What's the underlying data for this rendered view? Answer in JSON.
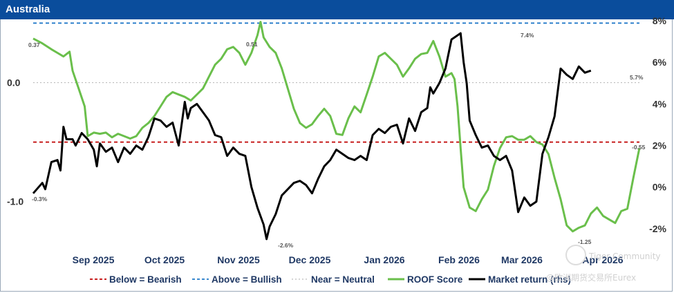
{
  "header": {
    "title": "Australia"
  },
  "watermark": {
    "line1": "Tiger Community",
    "line2": "@欧洲期货交易所Eurex"
  },
  "chart_data": {
    "type": "line",
    "title": "Australia",
    "x_labels": [
      "Sep 2025",
      "Oct 2025",
      "Nov 2025",
      "Dec 2025",
      "Jan 2026",
      "Feb 2026",
      "Mar 2026",
      "Apr 2026"
    ],
    "y_left": {
      "ticks": [
        "0.0",
        "-1.0"
      ],
      "range": [
        -1.35,
        0.52
      ]
    },
    "y_right": {
      "ticks": [
        "8%",
        "6%",
        "4%",
        "2%",
        "0%",
        "-2%"
      ],
      "range": [
        -2.7,
        8.0
      ]
    },
    "reference_lines": [
      {
        "name": "Below = Bearish",
        "value": -0.5,
        "color": "#c00000",
        "style": "dashed"
      },
      {
        "name": "Above = Bullish",
        "value": 0.5,
        "color": "#1f77c8",
        "style": "dashed"
      },
      {
        "name": "Near = Neutral",
        "value": 0.0,
        "color": "#bbbbbb",
        "style": "dotted"
      }
    ],
    "series": [
      {
        "name": "ROOF Score",
        "axis": "left",
        "color": "#6abf4b",
        "points": [
          [
            0,
            0.37
          ],
          [
            3,
            0.33
          ],
          [
            6,
            0.28
          ],
          [
            8,
            0.25
          ],
          [
            10,
            0.22
          ],
          [
            12,
            0.26
          ],
          [
            13,
            0.1
          ],
          [
            15,
            -0.05
          ],
          [
            17,
            -0.2
          ],
          [
            18,
            -0.45
          ],
          [
            20,
            -0.42
          ],
          [
            22,
            -0.43
          ],
          [
            24,
            -0.42
          ],
          [
            26,
            -0.46
          ],
          [
            28,
            -0.43
          ],
          [
            30,
            -0.45
          ],
          [
            32,
            -0.47
          ],
          [
            34,
            -0.45
          ],
          [
            36,
            -0.38
          ],
          [
            38,
            -0.34
          ],
          [
            40,
            -0.28
          ],
          [
            42,
            -0.2
          ],
          [
            44,
            -0.12
          ],
          [
            46,
            -0.08
          ],
          [
            48,
            -0.1
          ],
          [
            50,
            -0.12
          ],
          [
            52,
            -0.15
          ],
          [
            54,
            -0.1
          ],
          [
            56,
            -0.05
          ],
          [
            58,
            0.05
          ],
          [
            60,
            0.15
          ],
          [
            62,
            0.2
          ],
          [
            64,
            0.28
          ],
          [
            66,
            0.3
          ],
          [
            68,
            0.25
          ],
          [
            70,
            0.15
          ],
          [
            72,
            0.25
          ],
          [
            74,
            0.4
          ],
          [
            75,
            0.51
          ],
          [
            76,
            0.38
          ],
          [
            78,
            0.3
          ],
          [
            80,
            0.25
          ],
          [
            82,
            0.12
          ],
          [
            84,
            -0.05
          ],
          [
            86,
            -0.22
          ],
          [
            88,
            -0.34
          ],
          [
            90,
            -0.38
          ],
          [
            92,
            -0.35
          ],
          [
            94,
            -0.28
          ],
          [
            96,
            -0.22
          ],
          [
            98,
            -0.28
          ],
          [
            100,
            -0.43
          ],
          [
            102,
            -0.44
          ],
          [
            104,
            -0.3
          ],
          [
            106,
            -0.2
          ],
          [
            108,
            -0.25
          ],
          [
            110,
            -0.1
          ],
          [
            112,
            0.05
          ],
          [
            114,
            0.22
          ],
          [
            116,
            0.25
          ],
          [
            118,
            0.2
          ],
          [
            120,
            0.15
          ],
          [
            122,
            0.05
          ],
          [
            124,
            0.12
          ],
          [
            126,
            0.2
          ],
          [
            128,
            0.24
          ],
          [
            130,
            0.25
          ],
          [
            132,
            0.35
          ],
          [
            134,
            0.22
          ],
          [
            136,
            0.05
          ],
          [
            138,
            0.08
          ],
          [
            139,
            0.03
          ],
          [
            140,
            -0.2
          ],
          [
            141,
            -0.55
          ],
          [
            142,
            -0.88
          ],
          [
            144,
            -1.05
          ],
          [
            146,
            -1.08
          ],
          [
            148,
            -0.98
          ],
          [
            150,
            -0.9
          ],
          [
            152,
            -0.7
          ],
          [
            154,
            -0.55
          ],
          [
            156,
            -0.46
          ],
          [
            158,
            -0.45
          ],
          [
            160,
            -0.48
          ],
          [
            162,
            -0.48
          ],
          [
            164,
            -0.45
          ],
          [
            166,
            -0.5
          ],
          [
            168,
            -0.52
          ],
          [
            170,
            -0.6
          ],
          [
            172,
            -0.8
          ],
          [
            174,
            -0.98
          ],
          [
            176,
            -1.2
          ],
          [
            178,
            -1.25
          ],
          [
            180,
            -1.22
          ],
          [
            182,
            -1.2
          ],
          [
            184,
            -1.1
          ],
          [
            186,
            -1.05
          ],
          [
            188,
            -1.12
          ],
          [
            190,
            -1.15
          ],
          [
            192,
            -1.18
          ],
          [
            194,
            -1.08
          ],
          [
            196,
            -1.06
          ],
          [
            198,
            -0.8
          ],
          [
            200,
            -0.55
          ]
        ]
      },
      {
        "name": "Market return (rhs)",
        "axis": "right",
        "color": "#000000",
        "points": [
          [
            0,
            -0.3
          ],
          [
            3,
            0.2
          ],
          [
            4,
            -0.1
          ],
          [
            6,
            1.2
          ],
          [
            8,
            1.3
          ],
          [
            9,
            0.8
          ],
          [
            10,
            2.9
          ],
          [
            11,
            2.3
          ],
          [
            13,
            2.3
          ],
          [
            14,
            2.0
          ],
          [
            16,
            2.6
          ],
          [
            18,
            2.3
          ],
          [
            20,
            1.8
          ],
          [
            21,
            1.0
          ],
          [
            22,
            2.1
          ],
          [
            24,
            1.7
          ],
          [
            26,
            1.9
          ],
          [
            28,
            1.2
          ],
          [
            30,
            1.9
          ],
          [
            32,
            1.6
          ],
          [
            34,
            2.0
          ],
          [
            36,
            1.8
          ],
          [
            38,
            2.4
          ],
          [
            40,
            3.3
          ],
          [
            42,
            3.2
          ],
          [
            44,
            2.9
          ],
          [
            46,
            3.1
          ],
          [
            48,
            2.0
          ],
          [
            50,
            4.1
          ],
          [
            51,
            3.3
          ],
          [
            52,
            3.8
          ],
          [
            54,
            4.0
          ],
          [
            56,
            3.6
          ],
          [
            58,
            3.2
          ],
          [
            60,
            2.5
          ],
          [
            62,
            2.4
          ],
          [
            64,
            1.5
          ],
          [
            66,
            1.9
          ],
          [
            68,
            1.6
          ],
          [
            70,
            1.5
          ],
          [
            72,
            0.0
          ],
          [
            74,
            -1.0
          ],
          [
            76,
            -1.8
          ],
          [
            77,
            -2.5
          ],
          [
            78,
            -1.9
          ],
          [
            80,
            -1.3
          ],
          [
            82,
            -0.4
          ],
          [
            84,
            -0.1
          ],
          [
            86,
            0.2
          ],
          [
            88,
            0.3
          ],
          [
            90,
            0.1
          ],
          [
            92,
            -0.3
          ],
          [
            94,
            0.4
          ],
          [
            96,
            1.0
          ],
          [
            98,
            1.3
          ],
          [
            100,
            1.8
          ],
          [
            102,
            1.6
          ],
          [
            104,
            1.4
          ],
          [
            106,
            1.3
          ],
          [
            108,
            1.5
          ],
          [
            110,
            1.3
          ],
          [
            112,
            2.5
          ],
          [
            114,
            2.8
          ],
          [
            116,
            2.6
          ],
          [
            118,
            2.9
          ],
          [
            120,
            3.0
          ],
          [
            122,
            2.1
          ],
          [
            124,
            3.3
          ],
          [
            126,
            2.7
          ],
          [
            128,
            3.6
          ],
          [
            130,
            3.8
          ],
          [
            131,
            4.8
          ],
          [
            132,
            4.5
          ],
          [
            134,
            5.0
          ],
          [
            136,
            5.7
          ],
          [
            138,
            7.1
          ],
          [
            140,
            7.3
          ],
          [
            141,
            7.4
          ],
          [
            142,
            6.0
          ],
          [
            143,
            5.0
          ],
          [
            144,
            3.2
          ],
          [
            146,
            2.5
          ],
          [
            148,
            1.9
          ],
          [
            150,
            2.0
          ],
          [
            152,
            1.5
          ],
          [
            154,
            1.3
          ],
          [
            156,
            1.5
          ],
          [
            158,
            0.8
          ],
          [
            160,
            -1.2
          ],
          [
            162,
            -0.5
          ],
          [
            164,
            -0.9
          ],
          [
            166,
            -0.7
          ],
          [
            168,
            1.6
          ],
          [
            170,
            2.4
          ],
          [
            172,
            3.4
          ],
          [
            174,
            5.7
          ],
          [
            176,
            5.4
          ],
          [
            178,
            5.2
          ],
          [
            180,
            5.8
          ],
          [
            182,
            5.5
          ],
          [
            184,
            5.6
          ]
        ]
      }
    ],
    "annotations": [
      {
        "text": "0.37",
        "series": "ROOF Score"
      },
      {
        "text": "0.51",
        "series": "ROOF Score"
      },
      {
        "text": "-1.25",
        "series": "ROOF Score"
      },
      {
        "text": "-0.55",
        "series": "ROOF Score"
      },
      {
        "text": "-0.3%",
        "series": "Market return (rhs)"
      },
      {
        "text": "-2.6%",
        "series": "Market return (rhs)"
      },
      {
        "text": "7.4%",
        "series": "Market return (rhs)"
      },
      {
        "text": "5.7%",
        "series": "Market return (rhs)"
      }
    ],
    "grid": false,
    "legend": "bottom"
  }
}
